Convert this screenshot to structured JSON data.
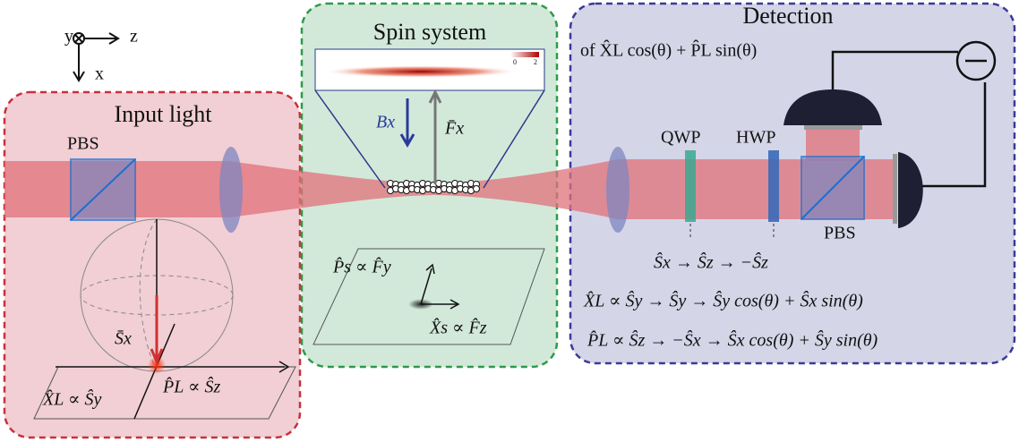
{
  "axes": {
    "y": "y",
    "z": "z",
    "x": "x"
  },
  "input": {
    "title": "Input light",
    "pbs": "PBS",
    "sx": "S̄x",
    "xl": "X̂L ∝ Ŝy",
    "pl": "P̂L ∝ Ŝz"
  },
  "spin": {
    "title": "Spin system",
    "bx": "Bx",
    "fx": "F̄x",
    "cbar": [
      "0",
      "2"
    ],
    "ps": "P̂s ∝ F̂y",
    "xs": "X̂s ∝ F̂z"
  },
  "detection": {
    "title": "Detection",
    "subtitle": "of X̂L cos(θ) + P̂L sin(θ)",
    "qwp": "QWP",
    "hwp": "HWP",
    "pbs": "PBS",
    "equations": [
      "Ŝx → Ŝz   → −Ŝz",
      "X̂L ∝ Ŝy → Ŝy   → Ŝy cos(θ) + Ŝx sin(θ)",
      "P̂L ∝ Ŝz → −Ŝx → Ŝx cos(θ) + Ŝy sin(θ)"
    ]
  }
}
